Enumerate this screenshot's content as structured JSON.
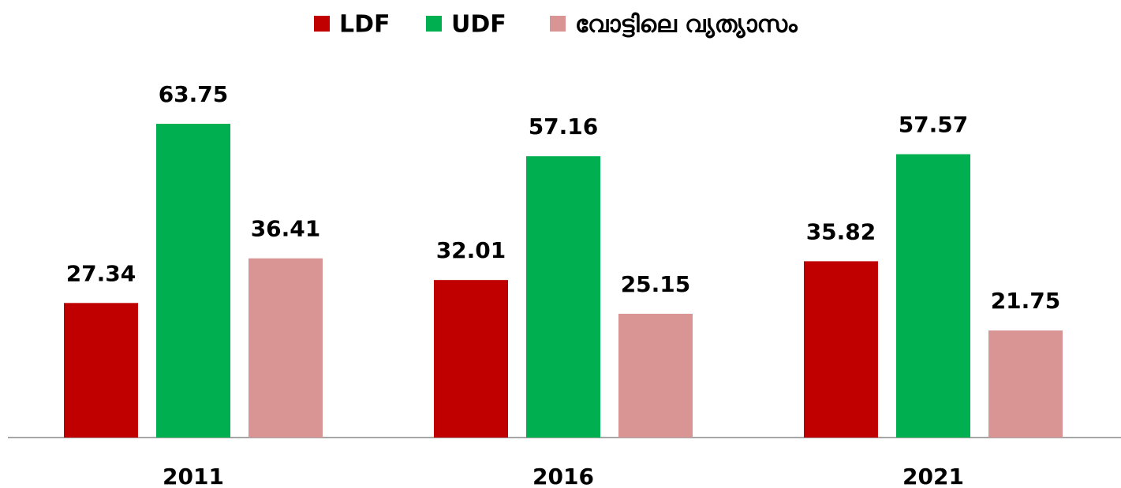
{
  "chart_data": {
    "type": "bar",
    "categories": [
      "2011",
      "2016",
      "2021"
    ],
    "series": [
      {
        "name": "LDF",
        "color": "#c00000",
        "values": [
          27.34,
          32.01,
          35.82
        ]
      },
      {
        "name": "UDF",
        "color": "#00b050",
        "values": [
          63.75,
          57.16,
          57.57
        ]
      },
      {
        "name": "വോട്ടിലെ വ്യത്യാസം",
        "color": "#d99594",
        "values": [
          36.41,
          25.15,
          21.75
        ]
      }
    ],
    "ylim": [
      0,
      70
    ],
    "legend": "top"
  }
}
